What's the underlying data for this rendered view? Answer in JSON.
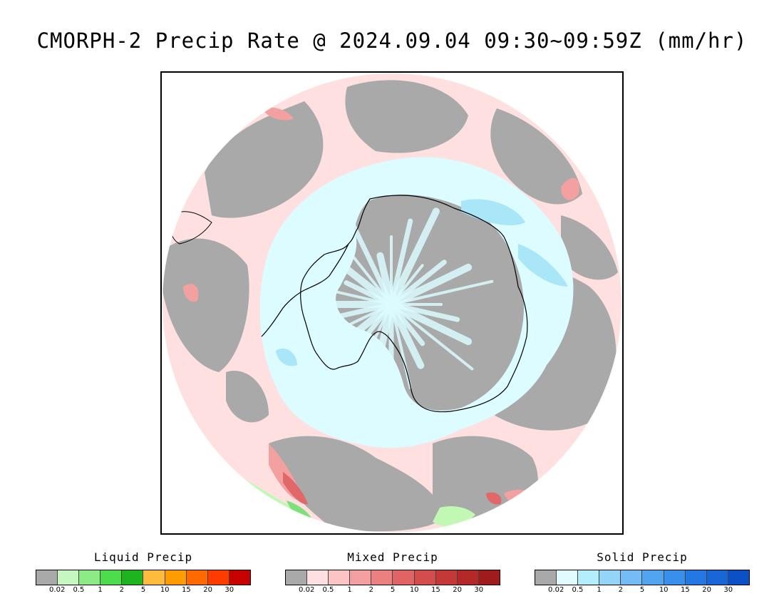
{
  "title": "CMORPH-2 Precip Rate @ 2024.09.04 09:30~09:59Z (mm/hr)",
  "map": {
    "projection": "south-polar-stereographic",
    "colors": {
      "no_precip": "#a9a9a9",
      "mixed_light": "#ffe0e0",
      "mixed_moderate": "#f2a0a0",
      "mixed_heavy": "#e06868",
      "solid_light": "#dcfcff",
      "solid_moderate": "#a8e6f8",
      "solid_heavy": "#8cc8f0",
      "liquid_light": "#c0f8b4",
      "liquid_moderate": "#7ee07a",
      "coastline": "#000000"
    }
  },
  "legends": [
    {
      "title": "Liquid Precip",
      "colors": [
        "#a9a9a9",
        "#c6f7c0",
        "#8ceb84",
        "#4cdc4c",
        "#1eb41e",
        "#ffbc3c",
        "#ff9c00",
        "#ff6a00",
        "#ff3c00",
        "#c80000"
      ],
      "ticks": [
        "0.02",
        "0.5",
        "1",
        "2",
        "5",
        "10",
        "15",
        "20",
        "30"
      ]
    },
    {
      "title": "Mixed Precip",
      "colors": [
        "#a9a9a9",
        "#ffe0e0",
        "#fcc4c4",
        "#f4a0a0",
        "#ec8080",
        "#e06464",
        "#d44c4c",
        "#c43838",
        "#b42828",
        "#a01c1c"
      ],
      "ticks": [
        "0.02",
        "0.5",
        "1",
        "2",
        "5",
        "10",
        "15",
        "20",
        "30"
      ]
    },
    {
      "title": "Solid Precip",
      "colors": [
        "#a9a9a9",
        "#e0fcff",
        "#b4eefc",
        "#94d4f8",
        "#74bcf4",
        "#50a4f0",
        "#3890ec",
        "#2478e4",
        "#1866d8",
        "#0c50c8"
      ],
      "ticks": [
        "0.02",
        "0.5",
        "1",
        "2",
        "5",
        "10",
        "15",
        "20",
        "30"
      ]
    }
  ]
}
